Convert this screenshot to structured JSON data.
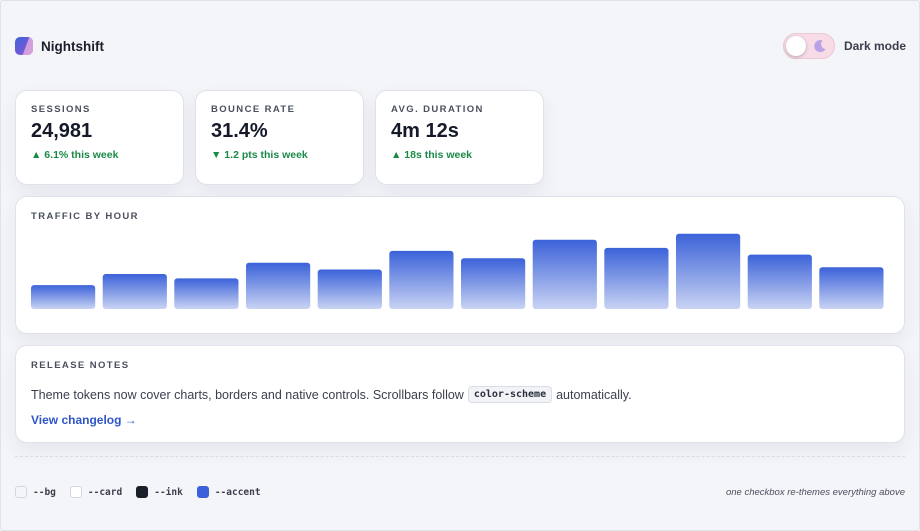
{
  "brand": {
    "name": "Nightshift",
    "logo_icon": "nightshift-logo"
  },
  "theme_toggle": {
    "label": "Dark mode",
    "checked": false,
    "icon": "moon-icon",
    "accent": "#f7dbe6"
  },
  "stats": [
    {
      "label": "SESSIONS",
      "value": "24,981",
      "delta": "▲ 6.1% this week",
      "trend": "up"
    },
    {
      "label": "BOUNCE RATE",
      "value": "31.4%",
      "delta": "▼ 1.2 pts this week",
      "trend": "down"
    },
    {
      "label": "AVG. DURATION",
      "value": "4m 12s",
      "delta": "▲ 18s this week",
      "trend": "up"
    }
  ],
  "traffic": {
    "title": "TRAFFIC BY HOUR"
  },
  "chart_data": {
    "type": "bar",
    "title": "TRAFFIC BY HOUR",
    "categories": [
      "",
      "",
      "",
      "",
      "",
      "",
      "",
      "",
      "",
      "",
      "",
      ""
    ],
    "values": [
      32,
      47,
      41,
      62,
      53,
      78,
      68,
      93,
      82,
      101,
      73,
      56
    ],
    "ylim": [
      0,
      110
    ],
    "grid": false,
    "colors": {
      "top": "#3b62d9",
      "bottom": "#c9d3f3"
    }
  },
  "release_notes": {
    "title": "RELEASE NOTES",
    "text_before": "Theme tokens now cover charts, borders and native controls. Scrollbars follow",
    "code": "color-scheme",
    "text_after": "automatically.",
    "link": "View changelog →"
  },
  "tokens": [
    {
      "name": "--bg",
      "color": "#f4f5f9"
    },
    {
      "name": "--card",
      "color": "#ffffff"
    },
    {
      "name": "--ink",
      "color": "#1b1f2a"
    },
    {
      "name": "--accent",
      "color": "#3b62d9"
    }
  ],
  "footnote": "one checkbox re-themes everything above"
}
